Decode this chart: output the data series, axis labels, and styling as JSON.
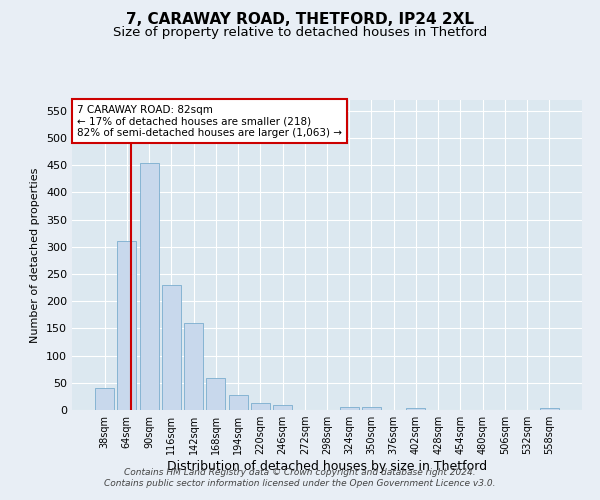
{
  "title1": "7, CARAWAY ROAD, THETFORD, IP24 2XL",
  "title2": "Size of property relative to detached houses in Thetford",
  "xlabel": "Distribution of detached houses by size in Thetford",
  "ylabel": "Number of detached properties",
  "annotation_line1": "7 CARAWAY ROAD: 82sqm",
  "annotation_line2": "← 17% of detached houses are smaller (218)",
  "annotation_line3": "82% of semi-detached houses are larger (1,063) →",
  "footer1": "Contains HM Land Registry data © Crown copyright and database right 2024.",
  "footer2": "Contains public sector information licensed under the Open Government Licence v3.0.",
  "categories": [
    "38sqm",
    "64sqm",
    "90sqm",
    "116sqm",
    "142sqm",
    "168sqm",
    "194sqm",
    "220sqm",
    "246sqm",
    "272sqm",
    "298sqm",
    "324sqm",
    "350sqm",
    "376sqm",
    "402sqm",
    "428sqm",
    "454sqm",
    "480sqm",
    "506sqm",
    "532sqm",
    "558sqm"
  ],
  "values": [
    40,
    310,
    455,
    230,
    160,
    58,
    27,
    12,
    10,
    0,
    0,
    5,
    5,
    0,
    4,
    0,
    0,
    0,
    0,
    0,
    4
  ],
  "bar_color": "#c8d8ec",
  "bar_edge_color": "#7aadcf",
  "marker_line_color": "#cc0000",
  "ylim": [
    0,
    570
  ],
  "yticks": [
    0,
    50,
    100,
    150,
    200,
    250,
    300,
    350,
    400,
    450,
    500,
    550
  ],
  "bg_color": "#e8eef5",
  "plot_bg_color": "#dce8f0",
  "grid_color": "#ffffff",
  "title1_fontsize": 11,
  "title2_fontsize": 9.5,
  "xlabel_fontsize": 9,
  "ylabel_fontsize": 8,
  "annotation_box_color": "#ffffff",
  "annotation_box_edge": "#cc0000",
  "footer_fontsize": 6.5
}
